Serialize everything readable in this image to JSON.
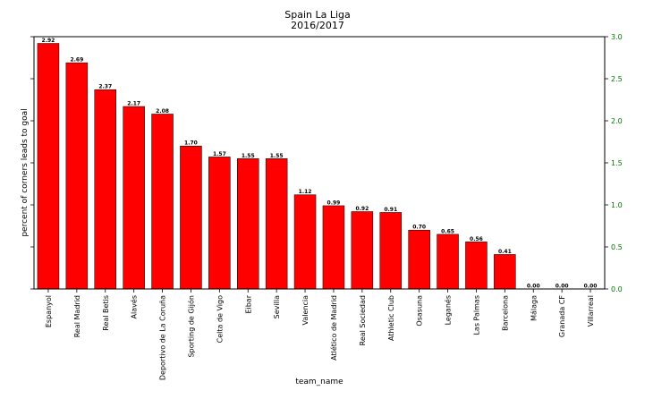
{
  "chart_data": {
    "type": "bar",
    "title": "Spain La Liga",
    "subtitle": "2016/2017",
    "xlabel": "team_name",
    "ylabel": "percent of corners leads to goal",
    "ylim": [
      0,
      3.0
    ],
    "right_axis_ticks": [
      "0.0",
      "0.5",
      "1.0",
      "1.5",
      "2.0",
      "2.5",
      "3.0"
    ],
    "right_axis_color": "#007700",
    "bar_color": "#ff0000",
    "grid": false,
    "categories": [
      "Espanyol",
      "Real Madrid",
      "Real Betis",
      "Alavés",
      "Deportivo de La Coruña",
      "Sporting de Gijón",
      "Celta de Vigo",
      "Eibar",
      "Sevilla",
      "Valencia",
      "Atlético de Madrid",
      "Real Sociedad",
      "Athletic Club",
      "Osasuna",
      "Leganés",
      "Las Palmas",
      "Barcelona",
      "Málaga",
      "Granada CF",
      "Villarreal"
    ],
    "values": [
      2.92,
      2.69,
      2.37,
      2.17,
      2.08,
      1.7,
      1.57,
      1.55,
      1.55,
      1.12,
      0.99,
      0.92,
      0.91,
      0.7,
      0.65,
      0.56,
      0.41,
      0.0,
      0.0,
      0.0
    ],
    "value_labels": [
      "2.92",
      "2.69",
      "2.37",
      "2.17",
      "2.08",
      "1.70",
      "1.57",
      "1.55",
      "1.55",
      "1.12",
      "0.99",
      "0.92",
      "0.91",
      "0.70",
      "0.65",
      "0.56",
      "0.41",
      "0.00",
      "0.00",
      "0.00"
    ]
  }
}
